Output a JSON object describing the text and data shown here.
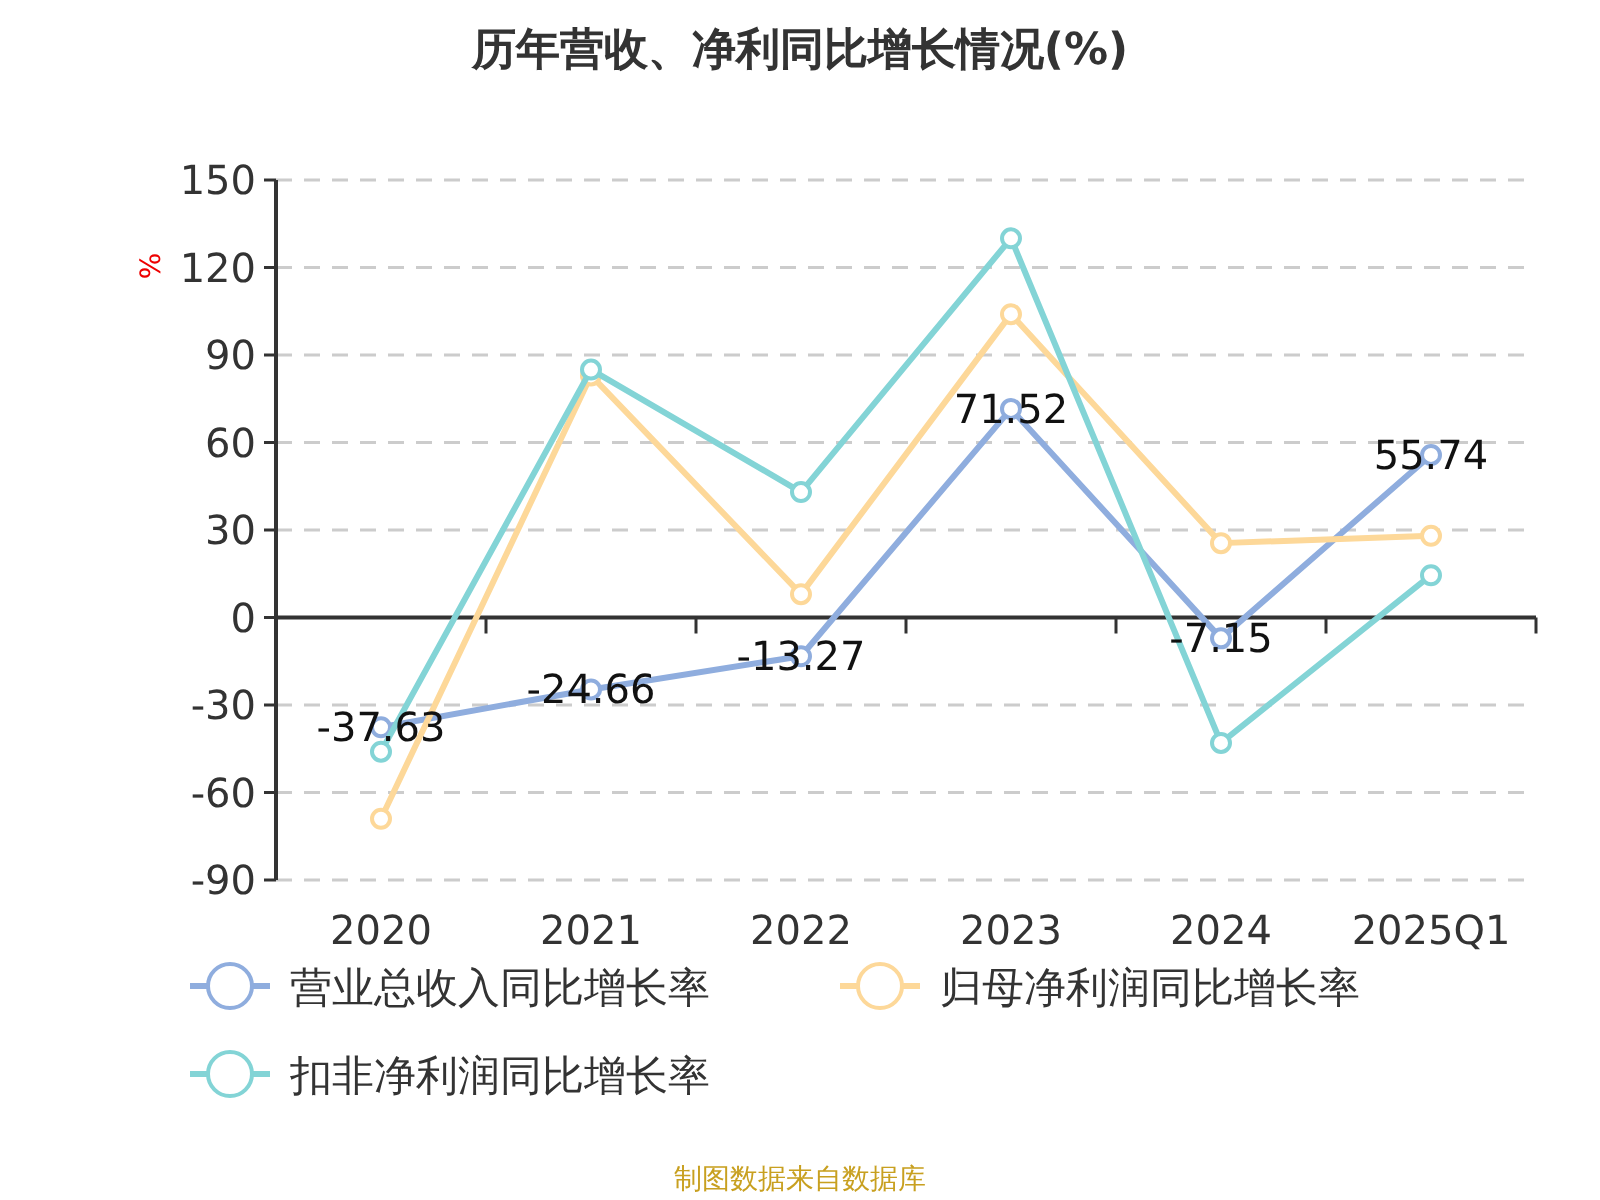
{
  "chart_data": {
    "type": "line",
    "title": "历年营收、净利同比增长情况(%)",
    "ylabel": "%",
    "categories": [
      "2020",
      "2021",
      "2022",
      "2023",
      "2024",
      "2025Q1"
    ],
    "series": [
      {
        "name": "营业总收入同比增长率",
        "color": "#8fadde",
        "values": [
          -37.63,
          -24.66,
          -13.27,
          71.52,
          -7.15,
          55.74
        ],
        "value_labels": [
          "-37.63",
          "-24.66",
          "-13.27",
          "71.52",
          "-7.15",
          "55.74"
        ]
      },
      {
        "name": "归母净利润同比增长率",
        "color": "#fdd899",
        "values": [
          -69,
          83,
          8,
          104,
          25.5,
          28
        ]
      },
      {
        "name": "扣非净利润同比增长率",
        "color": "#83d4d6",
        "values": [
          -46,
          85,
          43,
          130,
          -43,
          14.5
        ]
      }
    ],
    "ylim": [
      -90,
      150
    ],
    "yticks": [
      -90,
      -60,
      -30,
      0,
      30,
      60,
      90,
      120,
      150
    ],
    "grid": "y",
    "marker": "circle",
    "legend": "bottom",
    "annotations": [
      "制图数据来自数据库"
    ]
  }
}
